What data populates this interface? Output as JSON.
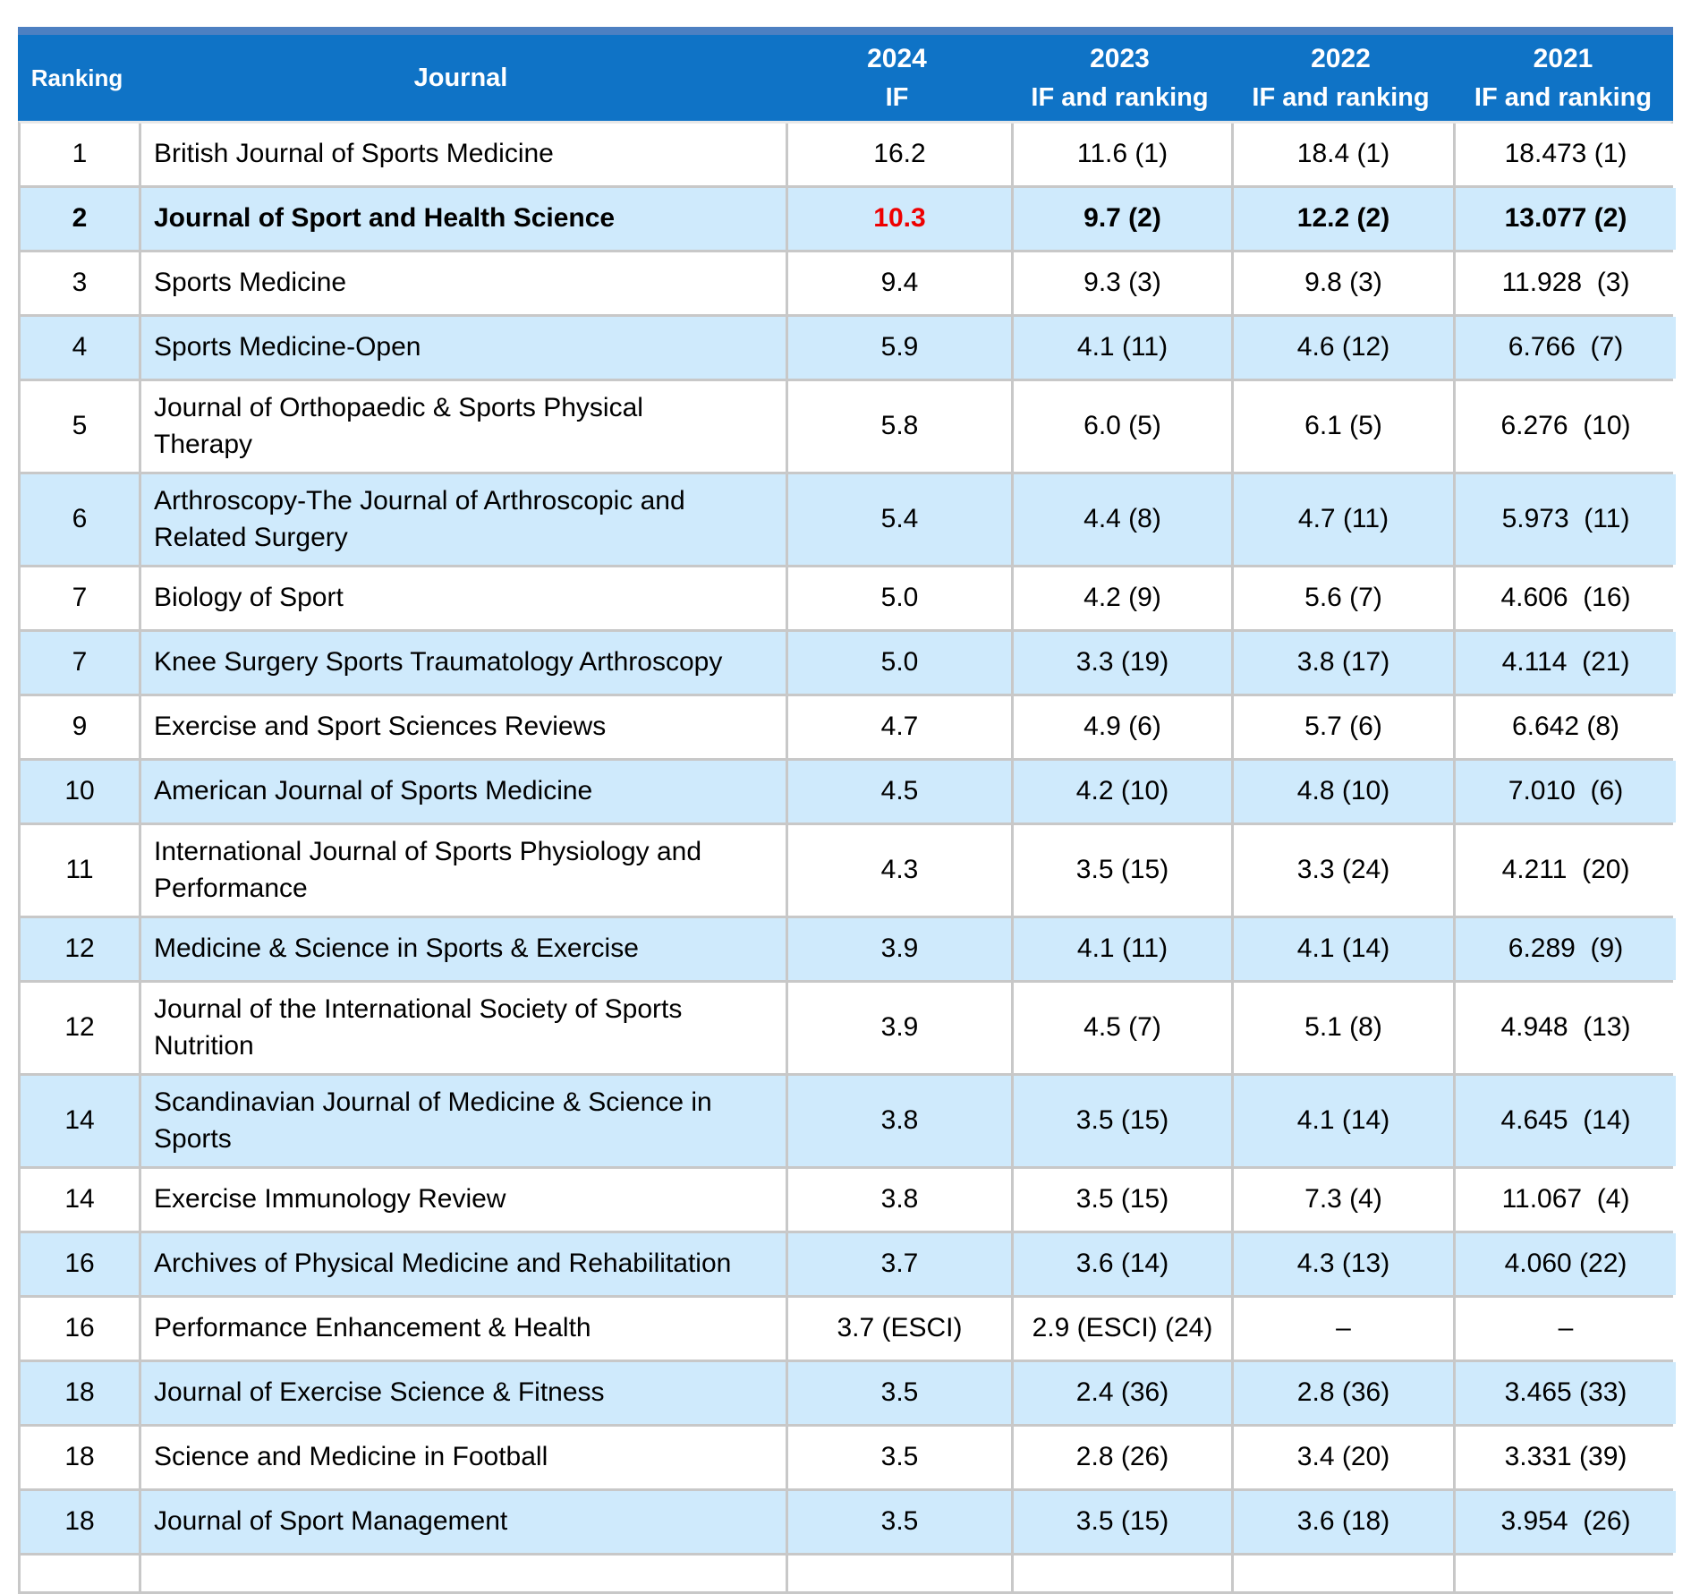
{
  "colors": {
    "header_bg": "#0f73c6",
    "header_strip": "#4d80c2",
    "row_alt_bg": "#cfeafc",
    "grid": "#c8c8c8",
    "highlight_red": "#ee0000"
  },
  "header": {
    "col_ranking": "Ranking",
    "col_journal": "Journal",
    "years": [
      {
        "year": "2024",
        "sub": "IF"
      },
      {
        "year": "2023",
        "sub": "IF and ranking"
      },
      {
        "year": "2022",
        "sub": "IF and ranking"
      },
      {
        "year": "2021",
        "sub": "IF and ranking"
      }
    ]
  },
  "rows": [
    {
      "rank": "1",
      "journal": "British Journal of Sports Medicine",
      "y2024": "16.2",
      "y2023": "11.6 (1)",
      "y2022": "18.4 (1)",
      "y2021": "18.473 (1)",
      "emphasis": false
    },
    {
      "rank": "2",
      "journal": "Journal of Sport and Health Science",
      "y2024": "10.3",
      "y2023": "9.7 (2)",
      "y2022": "12.2 (2)",
      "y2021": "13.077 (2)",
      "emphasis": true
    },
    {
      "rank": "3",
      "journal": "Sports Medicine",
      "y2024": "9.4",
      "y2023": "9.3 (3)",
      "y2022": "9.8 (3)",
      "y2021": "11.928  (3)",
      "emphasis": false
    },
    {
      "rank": "4",
      "journal": "Sports Medicine-Open",
      "y2024": "5.9",
      "y2023": "4.1 (11)",
      "y2022": "4.6 (12)",
      "y2021": "6.766  (7)",
      "emphasis": false
    },
    {
      "rank": "5",
      "journal": "Journal of Orthopaedic & Sports Physical\nTherapy",
      "y2024": "5.8",
      "y2023": "6.0 (5)",
      "y2022": "6.1 (5)",
      "y2021": "6.276  (10)",
      "emphasis": false
    },
    {
      "rank": "6",
      "journal": "Arthroscopy-The Journal of Arthroscopic and\nRelated Surgery",
      "y2024": "5.4",
      "y2023": "4.4 (8)",
      "y2022": "4.7 (11)",
      "y2021": "5.973  (11)",
      "emphasis": false
    },
    {
      "rank": "7",
      "journal": "Biology of Sport",
      "y2024": "5.0",
      "y2023": "4.2 (9)",
      "y2022": "5.6 (7)",
      "y2021": "4.606  (16)",
      "emphasis": false
    },
    {
      "rank": "7",
      "journal": "Knee Surgery Sports Traumatology Arthroscopy",
      "y2024": "5.0",
      "y2023": "3.3 (19)",
      "y2022": "3.8 (17)",
      "y2021": "4.114  (21)",
      "emphasis": false
    },
    {
      "rank": "9",
      "journal": "Exercise and Sport Sciences Reviews",
      "y2024": "4.7",
      "y2023": "4.9 (6)",
      "y2022": "5.7 (6)",
      "y2021": "6.642 (8)",
      "emphasis": false
    },
    {
      "rank": "10",
      "journal": "American Journal of Sports Medicine",
      "y2024": "4.5",
      "y2023": "4.2 (10)",
      "y2022": "4.8 (10)",
      "y2021": "7.010  (6)",
      "emphasis": false
    },
    {
      "rank": "11",
      "journal": "International Journal of Sports Physiology and\nPerformance",
      "y2024": "4.3",
      "y2023": "3.5 (15)",
      "y2022": "3.3 (24)",
      "y2021": "4.211  (20)",
      "emphasis": false
    },
    {
      "rank": "12",
      "journal": "Medicine & Science in Sports & Exercise",
      "y2024": "3.9",
      "y2023": "4.1 (11)",
      "y2022": "4.1 (14)",
      "y2021": "6.289  (9)",
      "emphasis": false
    },
    {
      "rank": "12",
      "journal": "Journal of the International Society of Sports\nNutrition",
      "y2024": "3.9",
      "y2023": "4.5 (7)",
      "y2022": "5.1 (8)",
      "y2021": "4.948  (13)",
      "emphasis": false
    },
    {
      "rank": "14",
      "journal": "Scandinavian Journal of Medicine & Science in\nSports",
      "y2024": "3.8",
      "y2023": "3.5 (15)",
      "y2022": "4.1 (14)",
      "y2021": "4.645  (14)",
      "emphasis": false
    },
    {
      "rank": "14",
      "journal": "Exercise Immunology Review",
      "y2024": "3.8",
      "y2023": "3.5 (15)",
      "y2022": "7.3 (4)",
      "y2021": "11.067  (4)",
      "emphasis": false
    },
    {
      "rank": "16",
      "journal": "Archives of Physical Medicine and Rehabilitation",
      "y2024": "3.7",
      "y2023": "3.6 (14)",
      "y2022": "4.3 (13)",
      "y2021": "4.060 (22)",
      "emphasis": false
    },
    {
      "rank": "16",
      "journal": "Performance Enhancement & Health",
      "y2024": "3.7 (ESCI)",
      "y2023": "2.9 (ESCI) (24)",
      "y2022": "–",
      "y2021": "–",
      "emphasis": false
    },
    {
      "rank": "18",
      "journal": "Journal of Exercise Science & Fitness",
      "y2024": "3.5",
      "y2023": "2.4 (36)",
      "y2022": "2.8 (36)",
      "y2021": "3.465 (33)",
      "emphasis": false
    },
    {
      "rank": "18",
      "journal": "Science and Medicine in Football",
      "y2024": "3.5",
      "y2023": "2.8 (26)",
      "y2022": "3.4 (20)",
      "y2021": "3.331 (39)",
      "emphasis": false
    },
    {
      "rank": "18",
      "journal": "Journal of Sport Management",
      "y2024": "3.5",
      "y2023": "3.5 (15)",
      "y2022": "3.6 (18)",
      "y2021": "3.954  (26)",
      "emphasis": false
    }
  ]
}
